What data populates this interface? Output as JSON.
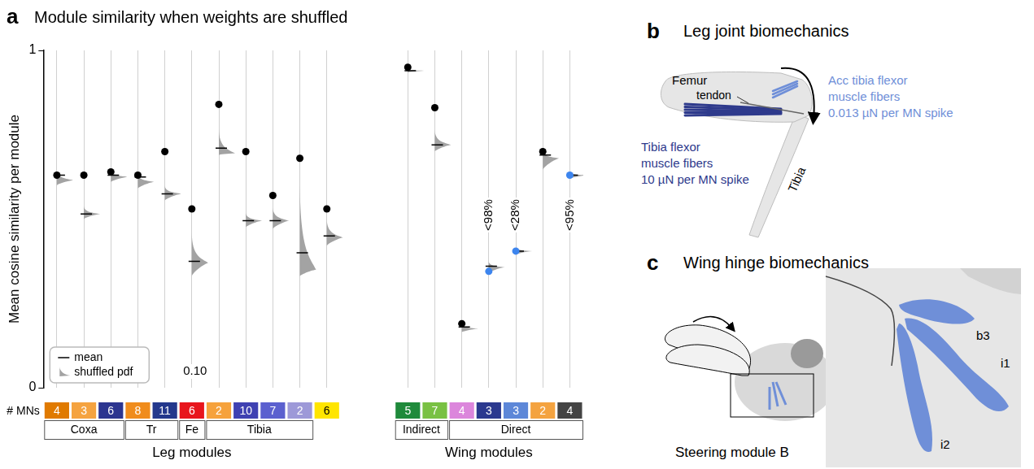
{
  "chart_data": {
    "type": "scatter",
    "panel": "a",
    "title": "Module similarity when weights are shuffled",
    "y_label": "Mean cosine similarity per module",
    "x_label": "# MNs",
    "ylim": [
      0,
      1
    ],
    "yticks": [
      0,
      1
    ],
    "grid": true,
    "legend": "bottom-left",
    "legend_entries": [
      "mean",
      "shuffled pdf"
    ],
    "categories": [
      "4",
      "3",
      "6",
      "8",
      "11",
      "6",
      "2",
      "10",
      "7",
      "2",
      "6",
      null,
      null,
      "5",
      "7",
      "4",
      "3",
      "3",
      "2",
      "4"
    ],
    "category_colors": [
      "#e07a00",
      "#f5a340",
      "#2c3590",
      "#f08c1c",
      "#24388c",
      "#e8151c",
      "#f6a23c",
      "#3f41b2",
      "#5b60cf",
      "#9d99d8",
      "#ffe500",
      null,
      null,
      "#1f8a3b",
      "#79c143",
      "#dc86dc",
      "#2b398f",
      "#5d87d8",
      "#f4a340",
      "#444444"
    ],
    "groups": [
      "Coxa",
      "Coxa",
      "Coxa",
      "Tr",
      "Tr",
      "Fe",
      "Tibia",
      "Tibia",
      "Tibia",
      "Tibia",
      null,
      null,
      null,
      "Indirect",
      "Indirect",
      "Direct",
      "Direct",
      "Direct",
      "Direct",
      "Direct"
    ],
    "super_groups": [
      "Leg modules",
      "Leg modules",
      "Leg modules",
      "Leg modules",
      "Leg modules",
      "Leg modules",
      "Leg modules",
      "Leg modules",
      "Leg modules",
      "Leg modules",
      "Leg modules",
      null,
      null,
      "Wing modules",
      "Wing modules",
      "Wing modules",
      "Wing modules",
      "Wing modules",
      "Wing modules",
      "Wing modules"
    ],
    "values": [
      0.63,
      0.63,
      0.64,
      0.63,
      0.7,
      0.53,
      0.84,
      0.7,
      0.57,
      0.68,
      0.53,
      null,
      null,
      0.95,
      0.83,
      0.19,
      0.345,
      0.405,
      0.7,
      0.63
    ],
    "colors": [
      "#000000",
      "#000000",
      "#000000",
      "#000000",
      "#000000",
      "#000000",
      "#000000",
      "#000000",
      "#000000",
      "#000000",
      "#000000",
      null,
      null,
      "#000000",
      "#000000",
      "#000000",
      "#3d85ee",
      "#3d85ee",
      "#000000",
      "#3d85ee"
    ],
    "shuffled_mean": [
      0.63,
      0.515,
      0.63,
      0.625,
      0.575,
      0.375,
      0.71,
      0.495,
      0.495,
      0.4,
      0.45,
      null,
      null,
      0.94,
      0.72,
      0.18,
      0.36,
      0.405,
      0.69,
      0.63
    ],
    "shuffled_mode": [
      0.615,
      0.515,
      0.625,
      0.61,
      0.575,
      0.37,
      0.695,
      0.495,
      0.495,
      0.35,
      0.445,
      null,
      null,
      0.94,
      0.72,
      0.175,
      0.357,
      0.405,
      0.68,
      0.63
    ],
    "shuffled_range": [
      [
        0.6,
        0.645
      ],
      [
        0.5,
        0.54
      ],
      [
        0.61,
        0.645
      ],
      [
        0.59,
        0.635
      ],
      [
        0.555,
        0.6
      ],
      [
        0.33,
        0.46
      ],
      [
        0.69,
        0.77
      ],
      [
        0.475,
        0.52
      ],
      [
        0.47,
        0.535
      ],
      [
        0.33,
        0.62
      ],
      [
        0.42,
        0.5
      ],
      null,
      null,
      [
        0.935,
        0.942
      ],
      [
        0.7,
        0.765
      ],
      [
        0.165,
        0.19
      ],
      [
        0.34,
        0.375
      ],
      [
        0.395,
        0.415
      ],
      [
        0.645,
        0.705
      ],
      [
        0.62,
        0.64
      ]
    ],
    "annotations": [
      null,
      null,
      null,
      null,
      null,
      null,
      null,
      null,
      null,
      null,
      null,
      null,
      null,
      null,
      null,
      null,
      "<98%",
      "<28%",
      null,
      "<95%"
    ],
    "notes": [
      null,
      null,
      null,
      null,
      null,
      "0.10",
      null,
      null,
      null,
      null,
      null,
      null,
      null,
      null,
      null,
      null,
      null,
      null,
      null,
      null
    ]
  },
  "panel_b": {
    "letter": "b",
    "title": "Leg joint biomechanics",
    "femur": "Femur",
    "tendon": "tendon",
    "tibia": "Tibia",
    "muscles": [
      {
        "lines": [
          "Tibia flexor",
          "muscle fibers",
          "10 µN per MN spike"
        ],
        "color": "#2e3a8c"
      },
      {
        "lines": [
          "Acc tibia flexor",
          "muscle fibers",
          "0.013 µN per MN spike"
        ],
        "color": "#6f8fd8"
      }
    ]
  },
  "panel_c": {
    "letter": "c",
    "title": "Wing hinge biomechanics",
    "caption": "Steering module B",
    "muscles": [
      "b3",
      "i1",
      "i2"
    ],
    "color": "#6f8fd8"
  }
}
